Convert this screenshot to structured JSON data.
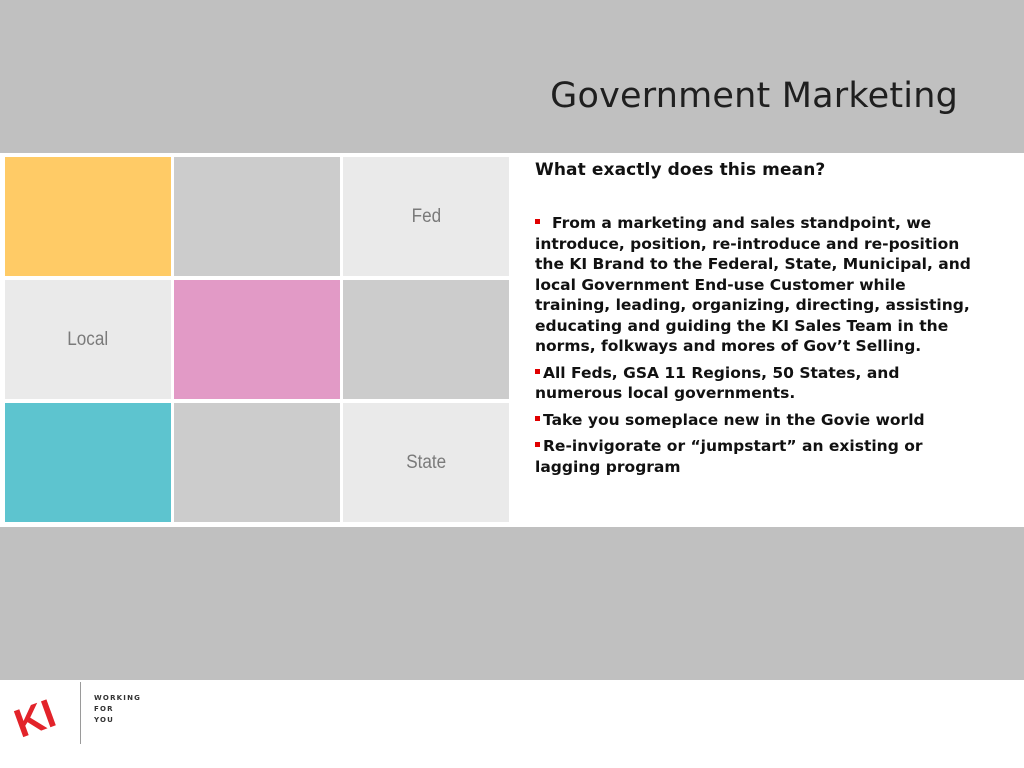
{
  "slide": {
    "title": "Government Marketing"
  },
  "grid": {
    "cells": [
      {
        "label": "",
        "color": "#ffcb66"
      },
      {
        "label": "",
        "color": "#cccccc"
      },
      {
        "label": "Fed",
        "color": "#eaeaea"
      },
      {
        "label": "Local",
        "color": "#eaeaea"
      },
      {
        "label": "",
        "color": "#e29ac6"
      },
      {
        "label": "",
        "color": "#cccccc"
      },
      {
        "label": "",
        "color": "#5dc4cf"
      },
      {
        "label": "",
        "color": "#cccccc"
      },
      {
        "label": "State",
        "color": "#eaeaea"
      }
    ]
  },
  "content": {
    "question": "What exactly does this mean?",
    "bullets": [
      "From a marketing and sales standpoint, we introduce, position, re-introduce and re-position the KI Brand to the Federal, State, Municipal, and local Government End-use Customer while training, leading, organizing, directing, assisting, educating and guiding the KI Sales Team in the norms, folkways and mores of Gov’t Selling.",
      "All Feds, GSA 11 Regions, 50 States, and numerous local governments.",
      "Take you someplace new in the Govie world",
      "Re-invigorate or “jumpstart” an existing or lagging program"
    ],
    "bullet_color": "#e00000"
  },
  "footer": {
    "logo_text": "KI",
    "logo_color": "#e2232a",
    "tagline": [
      "WORKING",
      "FOR",
      "YOU"
    ]
  }
}
